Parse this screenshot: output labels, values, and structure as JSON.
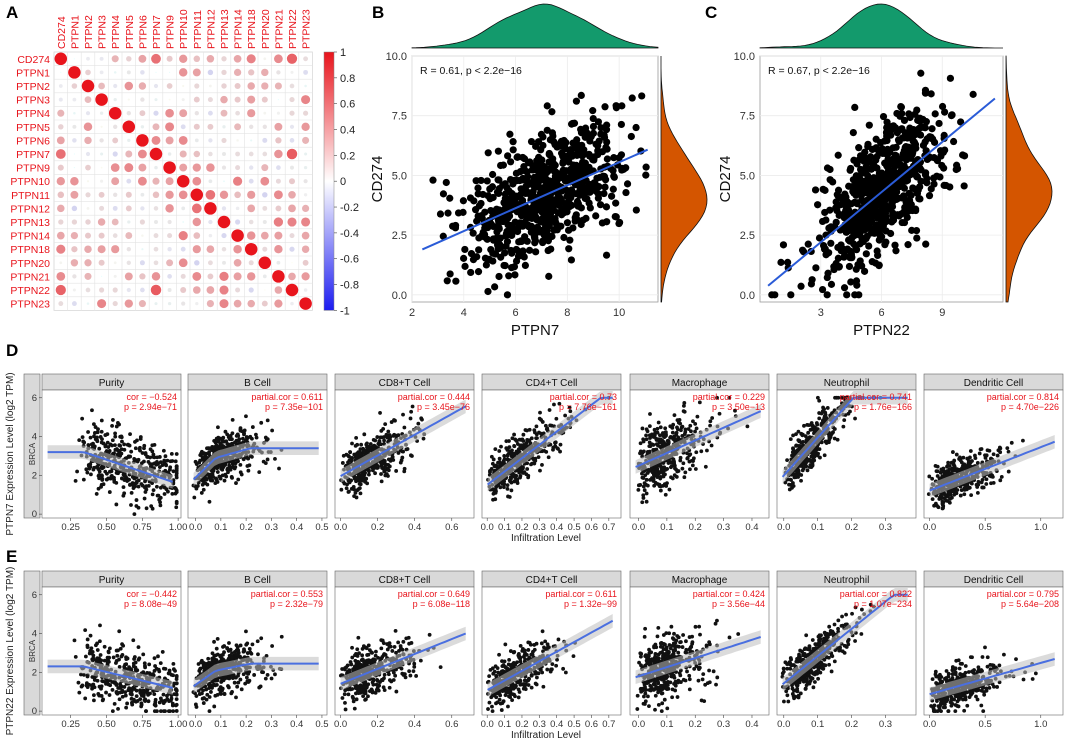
{
  "panel_letters": {
    "a": "A",
    "b": "B",
    "c": "C",
    "d": "D",
    "e": "E"
  },
  "colors": {
    "pos": "#e8141c",
    "neg": "#1c1cf0",
    "scatter_pt": "#000000",
    "fit": "#2a5bd7",
    "green": "#139a6c",
    "orange": "#d45500",
    "strip": "#d9d9d9",
    "panel_bg": "#ffffff",
    "stat": "#e8141c",
    "smooth": "#4a6fe0"
  },
  "chart_data": [
    {
      "id": "A",
      "type": "heatmap",
      "variables": [
        "CD274",
        "PTPN1",
        "PTPN2",
        "PTPN3",
        "PTPN4",
        "PTPN5",
        "PTPN6",
        "PTPN7",
        "PTPN9",
        "PTPN10",
        "PTPN11",
        "PTPN12",
        "PTPN13",
        "PTPN14",
        "PTPN18",
        "PTPN20",
        "PTPN21",
        "PTPN22",
        "PTPN23"
      ],
      "colorbar_ticks": [
        "1",
        "0.8",
        "0.6",
        "0.4",
        "0.2",
        "0",
        "-0.2",
        "-0.4",
        "-0.6",
        "-0.8",
        "-1"
      ],
      "notable": [
        {
          "a": "CD274",
          "b": "PTPN7",
          "r": 0.61
        },
        {
          "a": "CD274",
          "b": "PTPN22",
          "r": 0.67
        },
        {
          "a": "PTPN7",
          "b": "PTPN22",
          "r": 0.7
        },
        {
          "a": "PTPN6",
          "b": "PTPN7",
          "r": 0.5
        },
        {
          "a": "PTPN11",
          "b": "PTPN12",
          "r": 0.6
        }
      ]
    },
    {
      "id": "B",
      "type": "scatter",
      "xlabel": "PTPN7",
      "ylabel": "CD274",
      "annotation": "R = 0.61, p < 2.2e−16",
      "xlim": [
        2,
        11.5
      ],
      "ylim": [
        -0.3,
        10
      ],
      "xticks": [
        "2",
        "4",
        "6",
        "8",
        "10"
      ],
      "yticks": [
        "0.0",
        "2.5",
        "5.0",
        "7.5",
        "10.0"
      ],
      "fit": {
        "slope": 0.48,
        "intercept": 0.75
      },
      "xcenter": 7.0,
      "xsd": 1.5,
      "ycenter": 4.1,
      "ysd": 1.4
    },
    {
      "id": "C",
      "type": "scatter",
      "xlabel": "PTPN22",
      "ylabel": "CD274",
      "annotation": "R = 0.67, p < 2.2e−16",
      "xlim": [
        0,
        12
      ],
      "ylim": [
        -0.3,
        10
      ],
      "xticks": [
        "3",
        "6",
        "9"
      ],
      "yticks": [
        "0.0",
        "2.5",
        "5.0",
        "7.5",
        "10.0"
      ],
      "fit": {
        "slope": 0.7,
        "intercept": 0.1
      },
      "xcenter": 6.0,
      "xsd": 1.5,
      "ycenter": 4.2,
      "ysd": 1.4
    },
    {
      "id": "D",
      "type": "scatter",
      "ylabel": "PTPN7 Expression Level (log2 TPM)",
      "xlabel": "Infiltration Level",
      "side_label": "BRCA",
      "ylim": [
        -0.2,
        6.4
      ],
      "yticks": [
        "0",
        "2",
        "4",
        "6"
      ],
      "panels": [
        {
          "title": "Purity",
          "stat1": "cor = −0.524",
          "stat2": "p = 2.94e−71",
          "xlim": [
            0.05,
            1.02
          ],
          "xticks": [
            "0.25",
            "0.50",
            "0.75",
            "1.00"
          ],
          "xvals": [
            0.25,
            0.5,
            0.75,
            1.0
          ]
        },
        {
          "title": "B Cell",
          "stat1": "partial.cor = 0.611",
          "stat2": "p = 7.35e−101",
          "xlim": [
            -0.03,
            0.52
          ],
          "xticks": [
            "0.0",
            "0.1",
            "0.2",
            "0.3",
            "0.4",
            "0.5"
          ],
          "xvals": [
            0,
            0.1,
            0.2,
            0.3,
            0.4,
            0.5
          ]
        },
        {
          "title": "CD8+T Cell",
          "stat1": "partial.cor = 0.444",
          "stat2": "p = 3.45e−76",
          "xlim": [
            -0.03,
            0.72
          ],
          "xticks": [
            "0.0",
            "0.2",
            "0.4",
            "0.6"
          ],
          "xvals": [
            0,
            0.2,
            0.4,
            0.6
          ]
        },
        {
          "title": "CD4+T Cell",
          "stat1": "partial.cor = 0.73",
          "stat2": "p = 7.76e−161",
          "xlim": [
            -0.03,
            0.77
          ],
          "xticks": [
            "0.0",
            "0.1",
            "0.2",
            "0.3",
            "0.4",
            "0.5",
            "0.6",
            "0.7"
          ],
          "xvals": [
            0,
            0.1,
            0.2,
            0.3,
            0.4,
            0.5,
            0.6,
            0.7
          ]
        },
        {
          "title": "Macrophage",
          "stat1": "partial.cor = 0.229",
          "stat2": "p = 3.50e−13",
          "xlim": [
            -0.03,
            0.46
          ],
          "xticks": [
            "0.0",
            "0.1",
            "0.2",
            "0.3",
            "0.4"
          ],
          "xvals": [
            0,
            0.1,
            0.2,
            0.3,
            0.4
          ]
        },
        {
          "title": "Neutrophil",
          "stat1": "partial.cor = 0.741",
          "stat2": "p = 1.76e−166",
          "xlim": [
            -0.02,
            0.39
          ],
          "xticks": [
            "0.0",
            "0.1",
            "0.2",
            "0.3"
          ],
          "xvals": [
            0,
            0.1,
            0.2,
            0.3
          ]
        },
        {
          "title": "Dendritic Cell",
          "stat1": "partial.cor = 0.814",
          "stat2": "p = 4.70e−226",
          "xlim": [
            -0.05,
            1.2
          ],
          "xticks": [
            "0.0",
            "0.5",
            "1.0"
          ],
          "xvals": [
            0,
            0.5,
            1.0
          ]
        }
      ]
    },
    {
      "id": "E",
      "type": "scatter",
      "ylabel": "PTPN22 Expression Level (log2 TPM)",
      "xlabel": "Infiltration Level",
      "side_label": "BRCA",
      "ylim": [
        -0.2,
        6.4
      ],
      "yticks": [
        "0",
        "2",
        "4",
        "6"
      ],
      "panels": [
        {
          "title": "Purity",
          "stat1": "cor = −0.442",
          "stat2": "p = 8.08e−49",
          "xlim": [
            0.05,
            1.02
          ],
          "xticks": [
            "0.25",
            "0.50",
            "0.75",
            "1.00"
          ],
          "xvals": [
            0.25,
            0.5,
            0.75,
            1.0
          ]
        },
        {
          "title": "B Cell",
          "stat1": "partial.cor = 0.553",
          "stat2": "p = 2.32e−79",
          "xlim": [
            -0.03,
            0.52
          ],
          "xticks": [
            "0.0",
            "0.1",
            "0.2",
            "0.3",
            "0.4",
            "0.5"
          ],
          "xvals": [
            0,
            0.1,
            0.2,
            0.3,
            0.4,
            0.5
          ]
        },
        {
          "title": "CD8+T Cell",
          "stat1": "partial.cor = 0.649",
          "stat2": "p = 6.08e−118",
          "xlim": [
            -0.03,
            0.72
          ],
          "xticks": [
            "0.0",
            "0.2",
            "0.4",
            "0.6"
          ],
          "xvals": [
            0,
            0.2,
            0.4,
            0.6
          ]
        },
        {
          "title": "CD4+T Cell",
          "stat1": "partial.cor = 0.611",
          "stat2": "p = 1.32e−99",
          "xlim": [
            -0.03,
            0.77
          ],
          "xticks": [
            "0.0",
            "0.1",
            "0.2",
            "0.3",
            "0.4",
            "0.5",
            "0.6",
            "0.7"
          ],
          "xvals": [
            0,
            0.1,
            0.2,
            0.3,
            0.4,
            0.5,
            0.6,
            0.7
          ]
        },
        {
          "title": "Macrophage",
          "stat1": "partial.cor = 0.424",
          "stat2": "p = 3.56e−44",
          "xlim": [
            -0.03,
            0.46
          ],
          "xticks": [
            "0.0",
            "0.1",
            "0.2",
            "0.3",
            "0.4"
          ],
          "xvals": [
            0,
            0.1,
            0.2,
            0.3,
            0.4
          ]
        },
        {
          "title": "Neutrophil",
          "stat1": "partial.cor = 0.822",
          "stat2": "p = 1.07e−234",
          "xlim": [
            -0.02,
            0.39
          ],
          "xticks": [
            "0.0",
            "0.1",
            "0.2",
            "0.3"
          ],
          "xvals": [
            0,
            0.1,
            0.2,
            0.3
          ]
        },
        {
          "title": "Dendritic Cell",
          "stat1": "partial.cor = 0.795",
          "stat2": "p = 5.64e−208",
          "xlim": [
            -0.05,
            1.2
          ],
          "xticks": [
            "0.0",
            "0.5",
            "1.0"
          ],
          "xvals": [
            0,
            0.5,
            1.0
          ]
        }
      ]
    }
  ]
}
